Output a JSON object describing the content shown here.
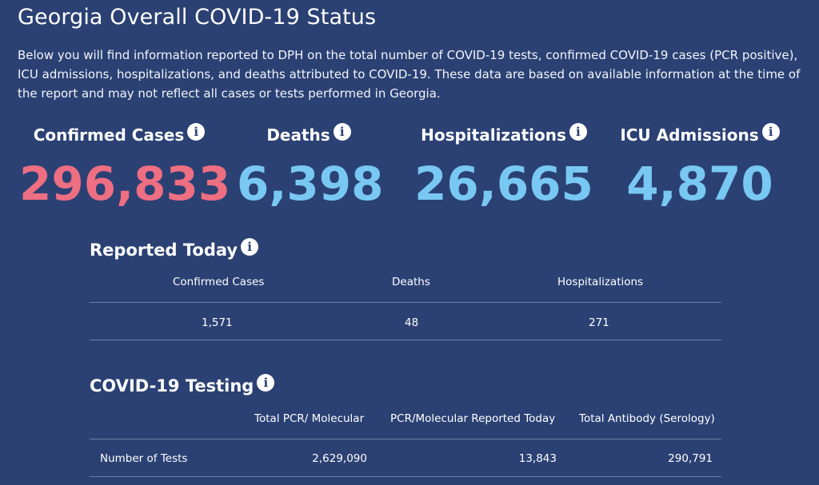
{
  "page": {
    "title": "Georgia Overall COVID-19 Status",
    "intro": "Below you will find information reported to DPH on the total number of COVID-19 tests, confirmed COVID-19 cases (PCR positive), ICU admissions, hospitalizations, and deaths attributed to COVID-19. These data are based on available information at the time of the report and may not reflect all cases or tests performed in Georgia."
  },
  "colors": {
    "background": "#2b4174",
    "cases_value": "#ee6e82",
    "other_values": "#78c8f3"
  },
  "icons": {
    "info": "info-icon",
    "info_glyph": "i"
  },
  "summary": {
    "confirmed_cases": {
      "label": "Confirmed Cases",
      "value": "296,833"
    },
    "deaths": {
      "label": "Deaths",
      "value": "6,398"
    },
    "hospitalizations": {
      "label": "Hospitalizations",
      "value": "26,665"
    },
    "icu_admissions": {
      "label": "ICU Admissions",
      "value": "4,870"
    }
  },
  "reported_today": {
    "title": "Reported Today",
    "headers": [
      "Confirmed Cases",
      "Deaths",
      "Hospitalizations"
    ],
    "values": [
      "1,571",
      "48",
      "271"
    ]
  },
  "testing": {
    "title": "COVID-19 Testing",
    "headers": [
      "Total PCR/ Molecular",
      "PCR/Molecular Reported Today",
      "Total Antibody (Serology)"
    ],
    "rows": [
      {
        "label": "Number of Tests",
        "values": [
          "2,629,090",
          "13,843",
          "290,791"
        ]
      }
    ]
  }
}
